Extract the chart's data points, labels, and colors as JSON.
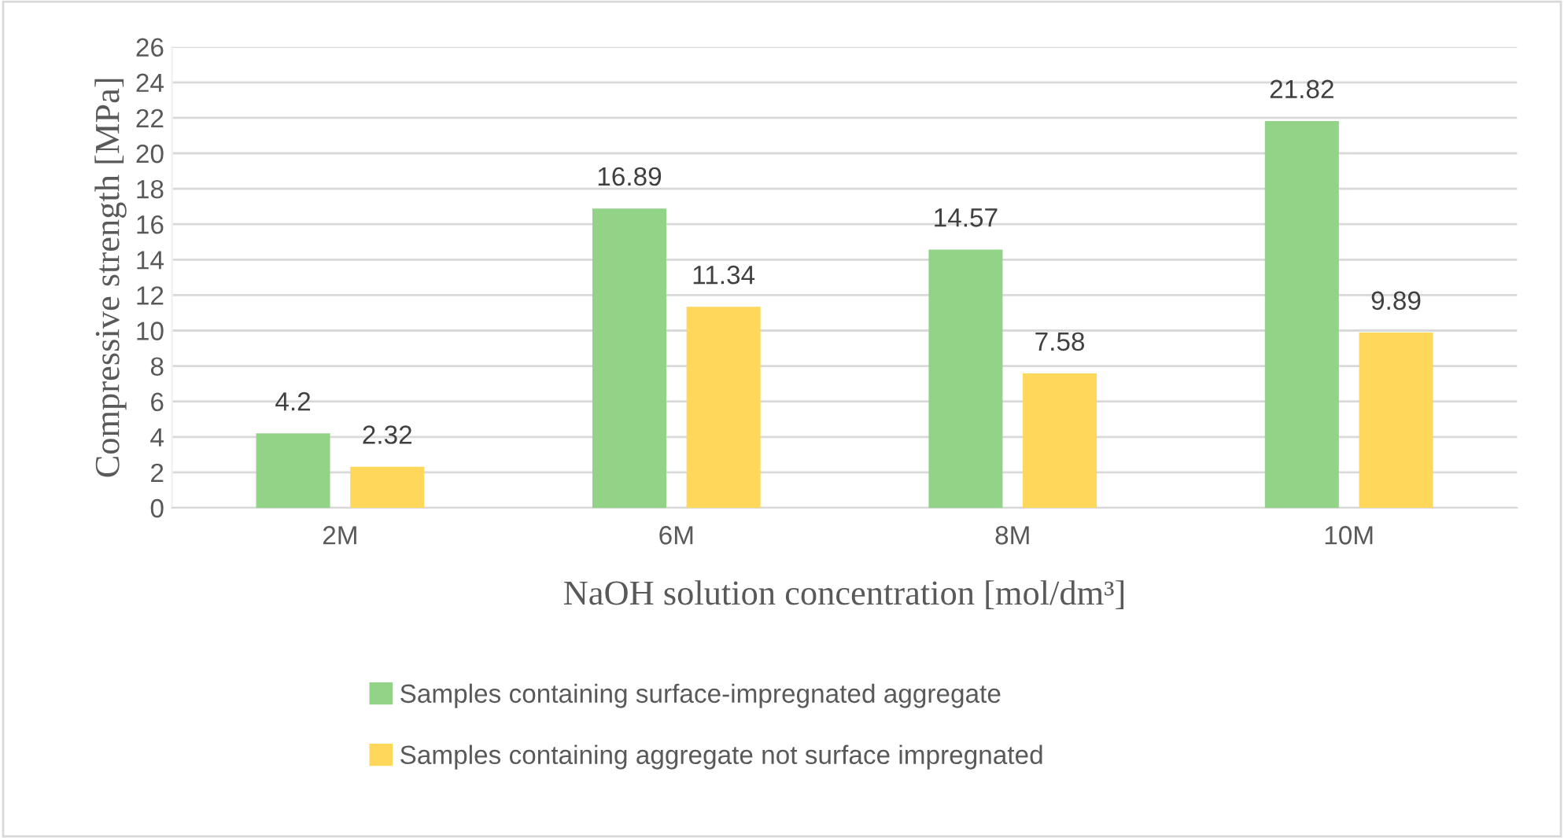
{
  "chart_data": {
    "type": "bar",
    "xlabel": "NaOH solution concentration [mol/dm³]",
    "ylabel": "Compressive strength [MPa]",
    "categories": [
      "2M",
      "6M",
      "8M",
      "10M"
    ],
    "series": [
      {
        "name": "Samples containing surface-impregnated aggregate",
        "color": "#92d387",
        "values": [
          4.2,
          16.89,
          14.57,
          21.82
        ]
      },
      {
        "name": "Samples containing aggregate not surface impregnated",
        "color": "#ffd75a",
        "values": [
          2.32,
          11.34,
          7.58,
          9.89
        ]
      }
    ],
    "ylim": [
      0,
      26
    ],
    "yticks": [
      0,
      2,
      4,
      6,
      8,
      10,
      12,
      14,
      16,
      18,
      20,
      22,
      24,
      26
    ],
    "grid": "y",
    "legend": "bottom",
    "data_labels": true
  }
}
